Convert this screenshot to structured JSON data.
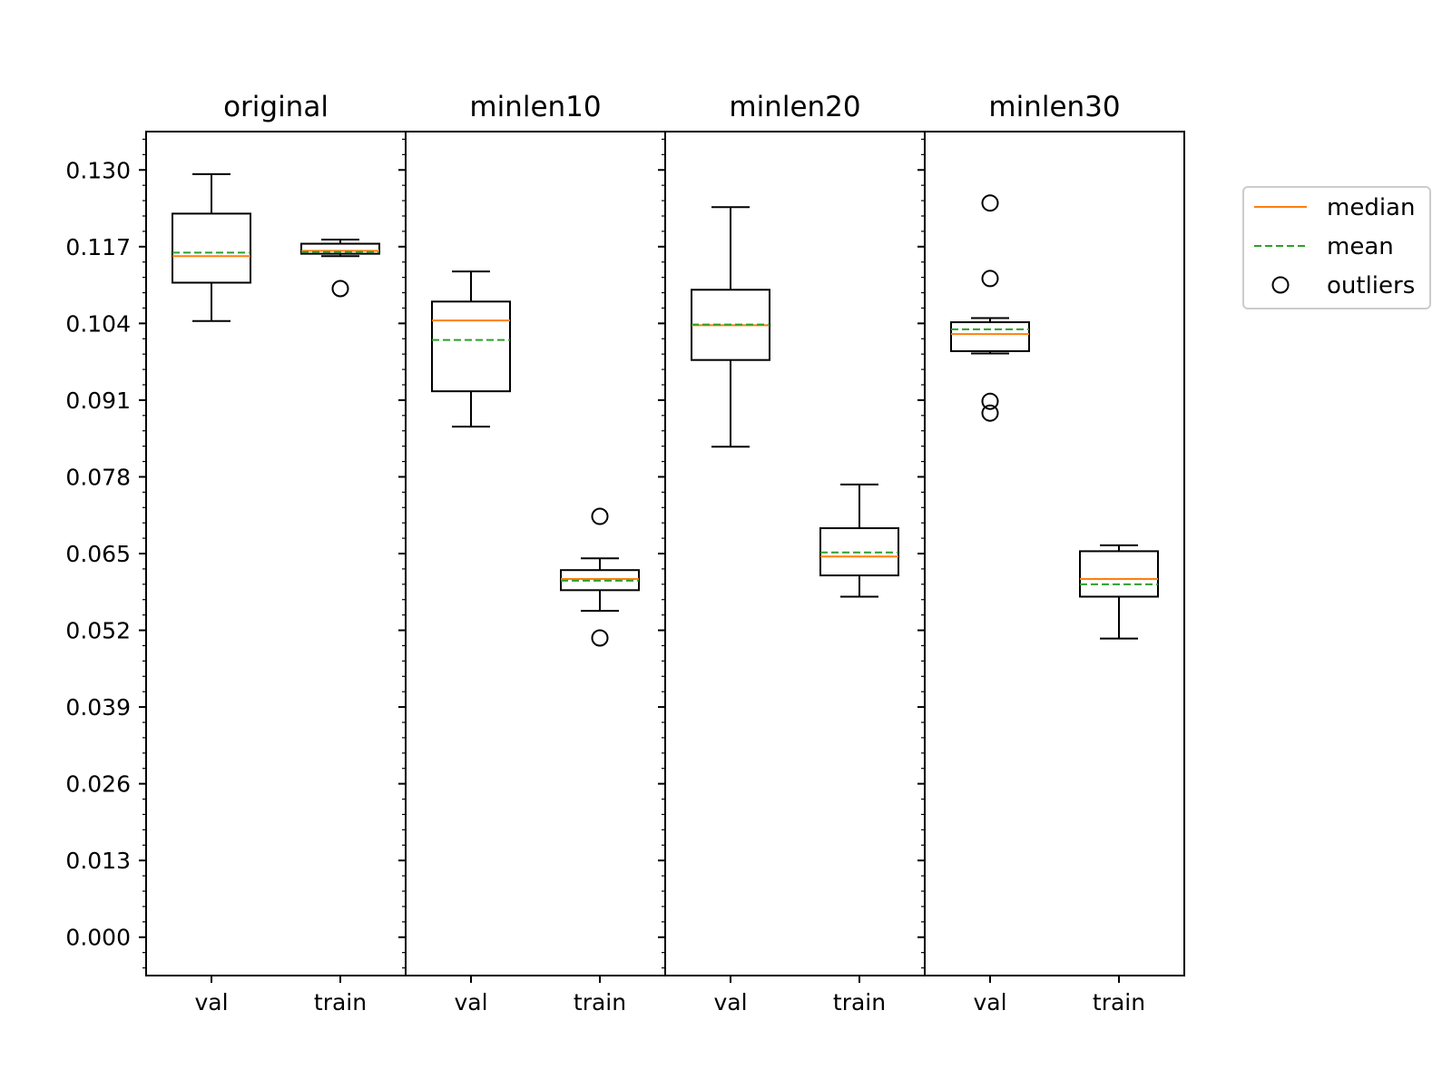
{
  "chart_data": {
    "type": "boxplot",
    "ylim": [
      -0.0065,
      0.1365
    ],
    "yticks": [
      "0.000",
      "0.013",
      "0.026",
      "0.039",
      "0.052",
      "0.065",
      "0.078",
      "0.091",
      "0.104",
      "0.117",
      "0.130"
    ],
    "categories": [
      "val",
      "train"
    ],
    "panels": [
      {
        "title": "original",
        "boxes": [
          {
            "category": "val",
            "whisker_low": 0.1044,
            "q1": 0.1109,
            "median": 0.1154,
            "mean": 0.116,
            "q3": 0.1226,
            "whisker_high": 0.1293,
            "outliers": []
          },
          {
            "category": "train",
            "whisker_low": 0.1154,
            "q1": 0.1158,
            "median": 0.1163,
            "mean": 0.1161,
            "q3": 0.1175,
            "whisker_high": 0.1182,
            "outliers": [
              0.1099
            ]
          }
        ]
      },
      {
        "title": "minlen10",
        "boxes": [
          {
            "category": "val",
            "whisker_low": 0.0865,
            "q1": 0.0925,
            "median": 0.1045,
            "mean": 0.1012,
            "q3": 0.1077,
            "whisker_high": 0.1128,
            "outliers": []
          },
          {
            "category": "train",
            "whisker_low": 0.0553,
            "q1": 0.0588,
            "median": 0.0607,
            "mean": 0.0604,
            "q3": 0.0622,
            "whisker_high": 0.0642,
            "outliers": [
              0.0713,
              0.0507
            ]
          }
        ]
      },
      {
        "title": "minlen20",
        "boxes": [
          {
            "category": "val",
            "whisker_low": 0.0831,
            "q1": 0.0978,
            "median": 0.1037,
            "mean": 0.1038,
            "q3": 0.1097,
            "whisker_high": 0.1237,
            "outliers": []
          },
          {
            "category": "train",
            "whisker_low": 0.0577,
            "q1": 0.0613,
            "median": 0.0645,
            "mean": 0.0652,
            "q3": 0.0693,
            "whisker_high": 0.0767,
            "outliers": []
          }
        ]
      },
      {
        "title": "minlen30",
        "boxes": [
          {
            "category": "val",
            "whisker_low": 0.0989,
            "q1": 0.0993,
            "median": 0.1022,
            "mean": 0.103,
            "q3": 0.1042,
            "whisker_high": 0.1049,
            "outliers": [
              0.1244,
              0.1116,
              0.0908,
              0.0888
            ]
          },
          {
            "category": "train",
            "whisker_low": 0.0506,
            "q1": 0.0577,
            "median": 0.0607,
            "mean": 0.0598,
            "q3": 0.0654,
            "whisker_high": 0.0664,
            "outliers": []
          }
        ]
      }
    ],
    "legend": {
      "position": "right",
      "entries": [
        {
          "label": "median",
          "style": "solid",
          "color": "#ff7f0e"
        },
        {
          "label": "mean",
          "style": "dashed",
          "color": "#2ca02c"
        },
        {
          "label": "outliers",
          "style": "circle",
          "color": "#000000"
        }
      ]
    },
    "grid": false
  }
}
